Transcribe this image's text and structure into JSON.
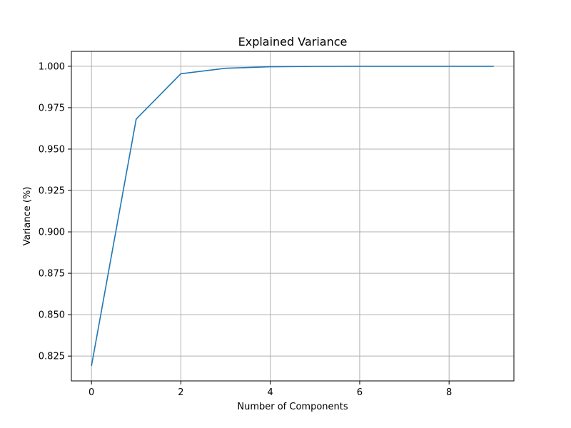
{
  "chart_data": {
    "type": "line",
    "title": "Explained Variance",
    "xlabel": "Number of Components",
    "ylabel": "Variance (%)",
    "x": [
      0,
      1,
      2,
      3,
      4,
      5,
      6,
      7,
      8,
      9
    ],
    "series": [
      {
        "color": "#1f77b4",
        "values": [
          0.8191,
          0.9681,
          0.9955,
          0.9988,
          0.9997,
          0.9999,
          1.0,
          1.0,
          1.0,
          1.0
        ]
      }
    ],
    "xlim": [
      -0.45,
      9.45
    ],
    "ylim": [
      0.81,
      1.009
    ],
    "xticks": [
      0,
      2,
      4,
      6,
      8
    ],
    "xtick_labels": [
      "0",
      "2",
      "4",
      "6",
      "8"
    ],
    "yticks": [
      0.825,
      0.85,
      0.875,
      0.9,
      0.925,
      0.95,
      0.975,
      1.0
    ],
    "ytick_labels": [
      "0.825",
      "0.850",
      "0.875",
      "0.900",
      "0.925",
      "0.950",
      "0.975",
      "1.000"
    ],
    "grid": true,
    "legend": "none"
  }
}
